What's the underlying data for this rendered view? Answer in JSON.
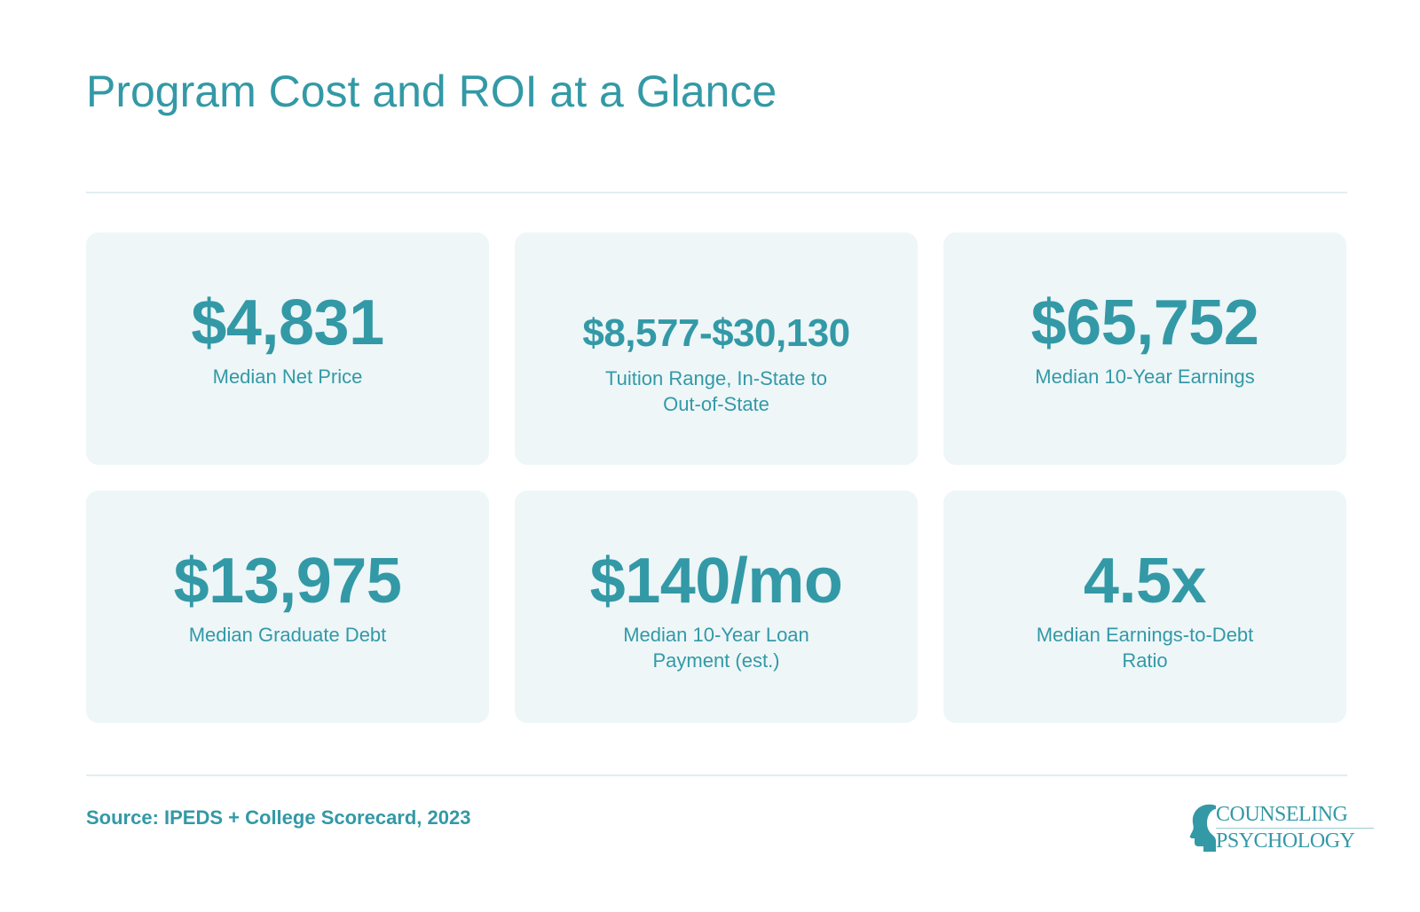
{
  "page": {
    "title": "Program Cost and ROI at a Glance",
    "source": "Source: IPEDS + College Scorecard, 2023"
  },
  "cards": [
    {
      "value": "$4,831",
      "label": "Median Net Price"
    },
    {
      "value": "$8,577-$30,130",
      "label": "Tuition Range, In-State to Out-of-State"
    },
    {
      "value": "$65,752",
      "label": "Median 10-Year Earnings"
    },
    {
      "value": "$13,975",
      "label": "Median Graduate Debt"
    },
    {
      "value": "$140/mo",
      "label": "Median 10-Year Loan Payment (est.)"
    },
    {
      "value": "4.5x",
      "label": "Median Earnings-to-Debt Ratio"
    }
  ],
  "logo": {
    "line1": "COUNSELING",
    "line2": "PSYCHOLOGY",
    "icon": "head-profile-icon"
  },
  "colors": {
    "accent": "#3399a6",
    "card_bg": "#eef6f8",
    "rule": "#e2eef1"
  }
}
